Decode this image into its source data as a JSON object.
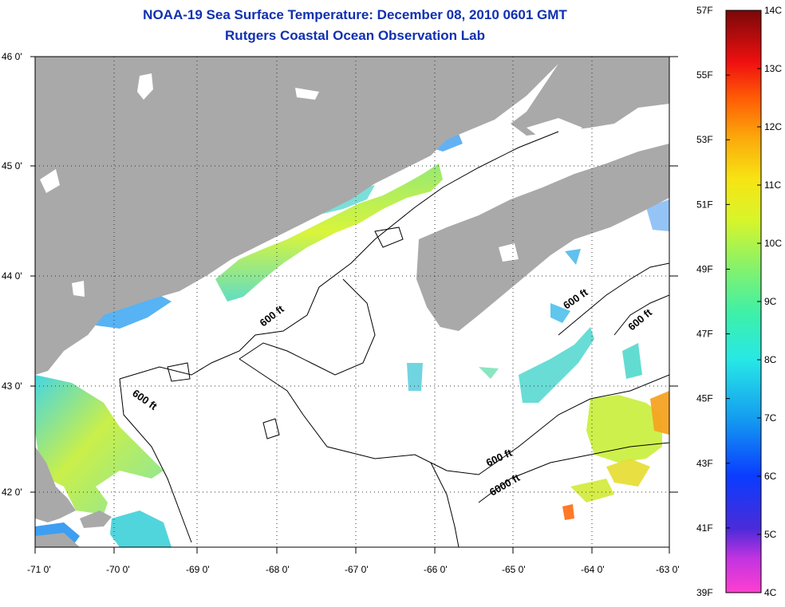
{
  "header": {
    "title": "NOAA-19 Sea Surface Temperature:  December 08, 2010 0601 GMT",
    "subtitle": "Rutgers Coastal Ocean Observation Lab"
  },
  "axes": {
    "lat_ticks": [
      "46 0'",
      "45 0'",
      "44 0'",
      "43 0'",
      "42 0'"
    ],
    "lon_ticks": [
      "-71 0'",
      "-70 0'",
      "-69 0'",
      "-68 0'",
      "-67 0'",
      "-66 0'",
      "-65 0'",
      "-64 0'",
      "-63 0'"
    ],
    "lat_range": [
      41.5,
      46.0
    ],
    "lon_range": [
      -71.0,
      -63.0
    ]
  },
  "contours": {
    "labels": [
      "600 ft",
      "600 ft",
      "600 ft",
      "600 ft",
      "600 ft",
      "6000 ft"
    ]
  },
  "colorbar": {
    "fahrenheit_ticks": [
      "57F",
      "55F",
      "53F",
      "51F",
      "49F",
      "47F",
      "45F",
      "43F",
      "41F",
      "39F"
    ],
    "celsius_ticks": [
      "14C",
      "13C",
      "12C",
      "11C",
      "10C",
      "9C",
      "8C",
      "7C",
      "6C",
      "5C",
      "4C"
    ],
    "range_celsius": [
      4,
      14
    ]
  },
  "colors": {
    "land": "#a9a9a9",
    "water_nodata": "#ffffff",
    "title": "#1030b0",
    "contour": "#000000"
  }
}
